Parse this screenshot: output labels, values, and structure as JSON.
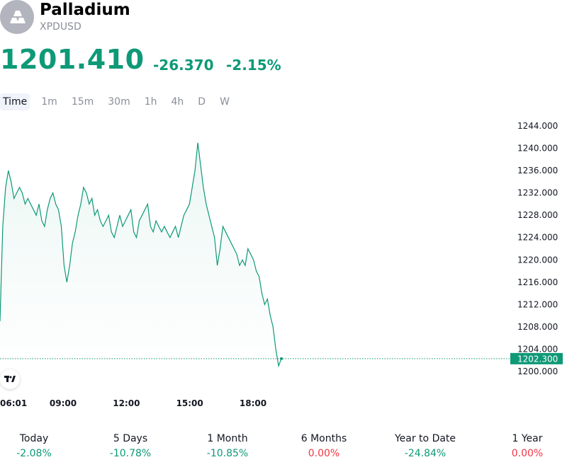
{
  "header": {
    "title": "Palladium",
    "ticker": "XPDUSD",
    "logo_icon": "gold-bars-icon"
  },
  "quote": {
    "price": "1201.410",
    "change": "-26.370",
    "change_percent": "-2.15%"
  },
  "tabs": [
    {
      "label": "Time",
      "active": true
    },
    {
      "label": "1m"
    },
    {
      "label": "15m"
    },
    {
      "label": "30m"
    },
    {
      "label": "1h"
    },
    {
      "label": "4h"
    },
    {
      "label": "D"
    },
    {
      "label": "W"
    }
  ],
  "colors": {
    "accent": "#0e9977",
    "negative": "#f23645",
    "axis_text": "#131722",
    "muted": "#8a8e99"
  },
  "chart_data": {
    "type": "area",
    "y_ticks": [
      "1244.000",
      "1240.000",
      "1236.000",
      "1232.000",
      "1228.000",
      "1224.000",
      "1220.000",
      "1216.000",
      "1212.000",
      "1208.000",
      "1204.000",
      "1200.000"
    ],
    "ylim": [
      1200,
      1244
    ],
    "x_ticks": [
      "06:01",
      "09:00",
      "12:00",
      "15:00",
      "18:00"
    ],
    "last_price_label": "1202.300",
    "last_price": 1202.3,
    "series": [
      {
        "values": [
          1209,
          1226,
          1233,
          1236,
          1234,
          1231,
          1232,
          1233,
          1232,
          1230,
          1231,
          1230,
          1229,
          1228,
          1230,
          1227,
          1226,
          1229,
          1231,
          1232,
          1230,
          1229,
          1226,
          1219,
          1216,
          1219,
          1223,
          1225,
          1228,
          1230,
          1233,
          1232,
          1230,
          1231,
          1228,
          1229,
          1227,
          1226,
          1227,
          1228,
          1225,
          1224,
          1226,
          1228,
          1226,
          1227,
          1228,
          1229,
          1225,
          1224,
          1227,
          1228,
          1229,
          1230,
          1226,
          1225,
          1227,
          1226,
          1225,
          1226,
          1225,
          1224,
          1225,
          1226,
          1224,
          1226,
          1228,
          1229,
          1230,
          1233,
          1236,
          1241,
          1237,
          1233,
          1230,
          1228,
          1226,
          1224,
          1219,
          1222,
          1226,
          1225,
          1224,
          1223,
          1222,
          1221,
          1219,
          1220,
          1219,
          1222,
          1221,
          1220,
          1218,
          1217,
          1214,
          1212,
          1213,
          1210,
          1208,
          1204,
          1201,
          1202.3
        ]
      }
    ]
  },
  "performance": [
    {
      "label": "Today",
      "value": "-2.08%",
      "tone": "negative"
    },
    {
      "label": "5 Days",
      "value": "-10.78%",
      "tone": "negative"
    },
    {
      "label": "1 Month",
      "value": "-10.85%",
      "tone": "negative"
    },
    {
      "label": "6 Months",
      "value": "0.00%",
      "tone": "flat"
    },
    {
      "label": "Year to Date",
      "value": "-24.84%",
      "tone": "negative"
    },
    {
      "label": "1 Year",
      "value": "0.00%",
      "tone": "flat"
    }
  ],
  "brand_icon": "tradingview-logo-icon"
}
